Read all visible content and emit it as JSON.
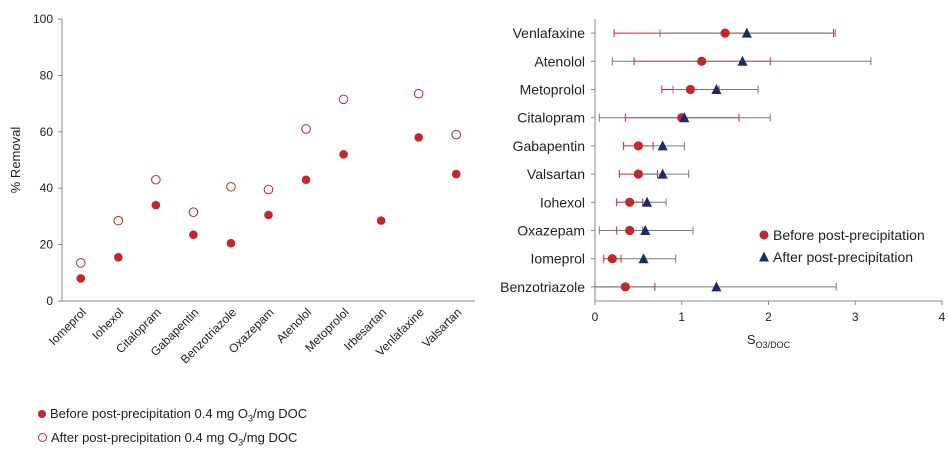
{
  "chart_data": [
    {
      "type": "scatter",
      "categories": [
        "Iomeprol",
        "Iohexol",
        "Citalopram",
        "Gabapentin",
        "Benzotriazole",
        "Oxazepam",
        "Atenolol",
        "Metoprolol",
        "Irbesartan",
        "Venlafaxine",
        "Valsartan"
      ],
      "series": [
        {
          "name": "Before post-precipitation 0.4 mg O3/mg DOC",
          "name_parts": [
            "Before post-precipitation 0.4 mg O",
            "3",
            "/mg DOC"
          ],
          "marker": "filled-circle",
          "color": "#C1272D",
          "values": [
            8,
            15.5,
            34,
            23.5,
            20.5,
            30.5,
            43,
            52,
            28.5,
            58,
            45
          ]
        },
        {
          "name": "After post-precipitation 0.4 mg O3/mg DOC",
          "name_parts": [
            "After post-precipitation 0.4 mg O",
            "3",
            "/mg DOC"
          ],
          "marker": "open-circle",
          "color": "#C1272D",
          "values": [
            13.5,
            28.5,
            43,
            31.5,
            40.5,
            39.5,
            61,
            71.5,
            null,
            73.5,
            59
          ]
        }
      ],
      "ylabel": "% Removal",
      "ylim": [
        0,
        100
      ],
      "yticks": [
        0,
        20,
        40,
        60,
        80,
        100
      ],
      "grid": false,
      "legend": "bottom-left"
    },
    {
      "type": "scatter",
      "categories": [
        "Venlafaxine",
        "Atenolol",
        "Metoprolol",
        "Citalopram",
        "Gabapentin",
        "Valsartan",
        "Iohexol",
        "Oxazepam",
        "Iomeprol",
        "Benzotriazole"
      ],
      "series": [
        {
          "name": "Before post-precipitation",
          "marker": "filled-circle",
          "color": "#C1272D",
          "values": [
            1.5,
            1.23,
            1.1,
            1.0,
            0.5,
            0.5,
            0.4,
            0.4,
            0.2,
            0.35
          ],
          "err_low": [
            0.22,
            0.45,
            0.77,
            0.35,
            0.33,
            0.28,
            0.25,
            0.25,
            0.1,
            0.0
          ],
          "err_high": [
            2.75,
            2.02,
            1.43,
            1.66,
            0.67,
            0.72,
            0.55,
            0.55,
            0.3,
            0.69
          ]
        },
        {
          "name": "After post-precipitation",
          "marker": "filled-triangle",
          "color": "#1F2A6B",
          "values": [
            1.75,
            1.7,
            1.4,
            1.03,
            0.78,
            0.78,
            0.6,
            0.58,
            0.56,
            1.4
          ],
          "err_low": [
            0.75,
            0.2,
            0.9,
            0.05,
            0.5,
            0.48,
            0.38,
            0.05,
            0.2,
            0.0
          ],
          "err_high": [
            2.77,
            3.18,
            1.88,
            2.02,
            1.03,
            1.08,
            0.82,
            1.13,
            0.93,
            2.78
          ]
        }
      ],
      "xlabel_parts": [
        "S",
        "O3/DOC"
      ],
      "xlim": [
        0,
        4
      ],
      "xticks": [
        0,
        1,
        2,
        3,
        4
      ],
      "grid": false,
      "legend": "right"
    }
  ]
}
